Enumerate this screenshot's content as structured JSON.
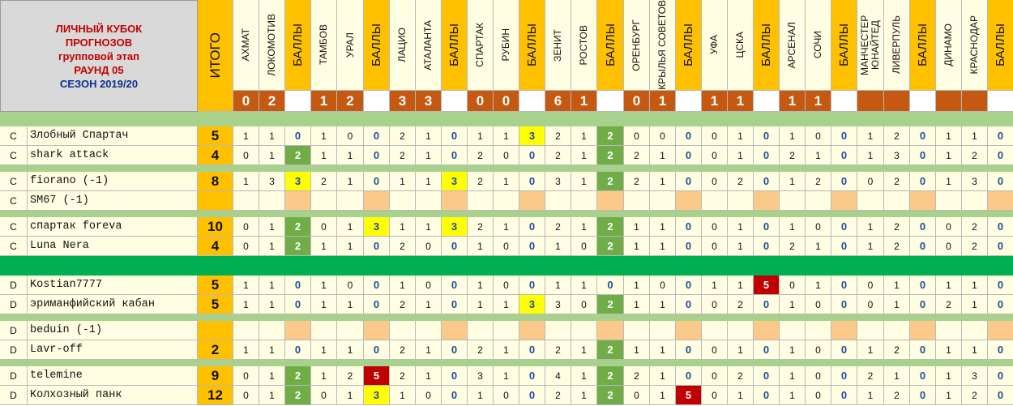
{
  "title": {
    "lines": [
      "ЛИЧНЫЙ КУБОК",
      "ПРОГНОЗОВ",
      "групповой этап",
      "РАУНД 05"
    ],
    "season": "СЕЗОН 2019/20"
  },
  "total_label": "ИТОГО",
  "points_label": "БАЛЛЫ",
  "matches": [
    {
      "home": "АХМАТ",
      "away": "ЛОКОМОТИВ",
      "home_goals": "0",
      "away_goals": "2"
    },
    {
      "home": "ТАМБОВ",
      "away": "УРАЛ",
      "home_goals": "1",
      "away_goals": "2"
    },
    {
      "home": "ЛАЦИО",
      "away": "АТАЛАНТА",
      "home_goals": "3",
      "away_goals": "3"
    },
    {
      "home": "СПАРТАК",
      "away": "РУБИН",
      "home_goals": "0",
      "away_goals": "0"
    },
    {
      "home": "ЗЕНИТ",
      "away": "РОСТОВ",
      "home_goals": "6",
      "away_goals": "1"
    },
    {
      "home": "ОРЕНБУРГ",
      "away": "КРЫЛЬЯ СОВЕТОВ",
      "home_goals": "0",
      "away_goals": "1"
    },
    {
      "home": "УФА",
      "away": "ЦСКА",
      "home_goals": "1",
      "away_goals": "1"
    },
    {
      "home": "АРСЕНАЛ",
      "away": "СОЧИ",
      "home_goals": "1",
      "away_goals": "1"
    },
    {
      "home": "МАНЧЕСТЕР ЮНАЙТЕД",
      "away": "ЛИВЕРПУЛЬ",
      "home_goals": "",
      "away_goals": ""
    },
    {
      "home": "ДИНАМО",
      "away": "КРАСНОДАР",
      "home_goals": "",
      "away_goals": ""
    }
  ],
  "players": [
    {
      "group": "C",
      "name": "Злобный Спартач",
      "total": "5",
      "cells": [
        "1",
        "1",
        "0",
        "1",
        "0",
        "0",
        "2",
        "1",
        "0",
        "1",
        "1",
        "3",
        "2",
        "1",
        "2",
        "0",
        "0",
        "0",
        "0",
        "1",
        "0",
        "1",
        "0",
        "0",
        "1",
        "2",
        "0",
        "1",
        "1",
        "0"
      ]
    },
    {
      "group": "C",
      "name": "shark attack",
      "total": "4",
      "cells": [
        "0",
        "1",
        "2",
        "1",
        "1",
        "0",
        "2",
        "1",
        "0",
        "2",
        "0",
        "0",
        "2",
        "1",
        "2",
        "2",
        "1",
        "0",
        "0",
        "1",
        "0",
        "2",
        "1",
        "0",
        "1",
        "3",
        "0",
        "1",
        "2",
        "0"
      ]
    },
    {
      "group": "C",
      "name": "fiorano (-1)",
      "total": "8",
      "cells": [
        "1",
        "3",
        "3",
        "2",
        "1",
        "0",
        "1",
        "1",
        "3",
        "2",
        "1",
        "0",
        "3",
        "1",
        "2",
        "2",
        "1",
        "0",
        "0",
        "2",
        "0",
        "1",
        "2",
        "0",
        "0",
        "2",
        "0",
        "1",
        "3",
        "0"
      ]
    },
    {
      "group": "C",
      "name": "SM67 (-1)",
      "total": "",
      "cells": [
        "",
        "",
        "E",
        "",
        "",
        "E",
        "",
        "",
        "E",
        "",
        "",
        "E",
        "",
        "",
        "E",
        "",
        "",
        "E",
        "",
        "",
        "E",
        "",
        "",
        "E",
        "",
        "",
        "E",
        "",
        "",
        "E"
      ]
    },
    {
      "group": "C",
      "name": "спартак foreva",
      "total": "10",
      "cells": [
        "0",
        "1",
        "2",
        "0",
        "1",
        "3",
        "1",
        "1",
        "3",
        "2",
        "1",
        "0",
        "2",
        "1",
        "2",
        "1",
        "1",
        "0",
        "0",
        "1",
        "0",
        "1",
        "0",
        "0",
        "1",
        "2",
        "0",
        "0",
        "2",
        "0"
      ]
    },
    {
      "group": "C",
      "name": "Luna Nera",
      "total": "4",
      "cells": [
        "0",
        "1",
        "2",
        "1",
        "1",
        "0",
        "2",
        "0",
        "0",
        "1",
        "0",
        "0",
        "1",
        "0",
        "2",
        "1",
        "1",
        "0",
        "0",
        "1",
        "0",
        "2",
        "1",
        "0",
        "1",
        "2",
        "0",
        "0",
        "2",
        "0"
      ]
    },
    {
      "group": "D",
      "name": "Kostian7777",
      "total": "5",
      "cells": [
        "1",
        "1",
        "0",
        "1",
        "0",
        "0",
        "1",
        "0",
        "0",
        "1",
        "0",
        "0",
        "1",
        "1",
        "0",
        "1",
        "0",
        "0",
        "1",
        "1",
        "5",
        "0",
        "1",
        "0",
        "0",
        "1",
        "0",
        "1",
        "1",
        "0"
      ]
    },
    {
      "group": "D",
      "name": "эриманфийский кабан",
      "total": "5",
      "cells": [
        "1",
        "1",
        "0",
        "1",
        "1",
        "0",
        "2",
        "1",
        "0",
        "1",
        "1",
        "3",
        "3",
        "0",
        "2",
        "1",
        "1",
        "0",
        "0",
        "2",
        "0",
        "1",
        "0",
        "0",
        "0",
        "1",
        "0",
        "2",
        "1",
        "0"
      ]
    },
    {
      "group": "D",
      "name": "beduin (-1)",
      "total": "",
      "cells": [
        "",
        "",
        "E",
        "",
        "",
        "E",
        "",
        "",
        "E",
        "",
        "",
        "E",
        "",
        "",
        "E",
        "",
        "",
        "E",
        "",
        "",
        "E",
        "",
        "",
        "E",
        "",
        "",
        "E",
        "",
        "",
        "E"
      ]
    },
    {
      "group": "D",
      "name": "Lavr-off",
      "total": "2",
      "cells": [
        "1",
        "1",
        "0",
        "1",
        "1",
        "0",
        "2",
        "1",
        "0",
        "2",
        "1",
        "0",
        "2",
        "1",
        "2",
        "1",
        "1",
        "0",
        "0",
        "1",
        "0",
        "1",
        "0",
        "0",
        "1",
        "2",
        "0",
        "1",
        "1",
        "0"
      ]
    },
    {
      "group": "D",
      "name": "telemine",
      "total": "9",
      "cells": [
        "0",
        "1",
        "2",
        "1",
        "2",
        "5",
        "2",
        "1",
        "0",
        "3",
        "1",
        "0",
        "4",
        "1",
        "2",
        "2",
        "1",
        "0",
        "0",
        "2",
        "0",
        "1",
        "0",
        "0",
        "2",
        "1",
        "0",
        "1",
        "3",
        "0"
      ]
    },
    {
      "group": "D",
      "name": "Колхозный панк",
      "total": "12",
      "cells": [
        "0",
        "1",
        "2",
        "0",
        "1",
        "3",
        "1",
        "0",
        "0",
        "1",
        "0",
        "0",
        "2",
        "1",
        "2",
        "0",
        "1",
        "5",
        "0",
        "1",
        "0",
        "1",
        "0",
        "0",
        "1",
        "2",
        "0",
        "1",
        "2",
        "0"
      ]
    }
  ],
  "colors": {
    "header_orange": "#ffc000",
    "score_brown": "#c65911",
    "cell_cream": "#fffde2",
    "points_2": "#70ad47",
    "points_3": "#ffff00",
    "points_5": "#c00000",
    "points_empty": "#fbc98a",
    "separator_light": "#a9d18e",
    "separator_group": "#00b050",
    "title_red": "#c00000",
    "title_blue": "#0b2f8f"
  }
}
